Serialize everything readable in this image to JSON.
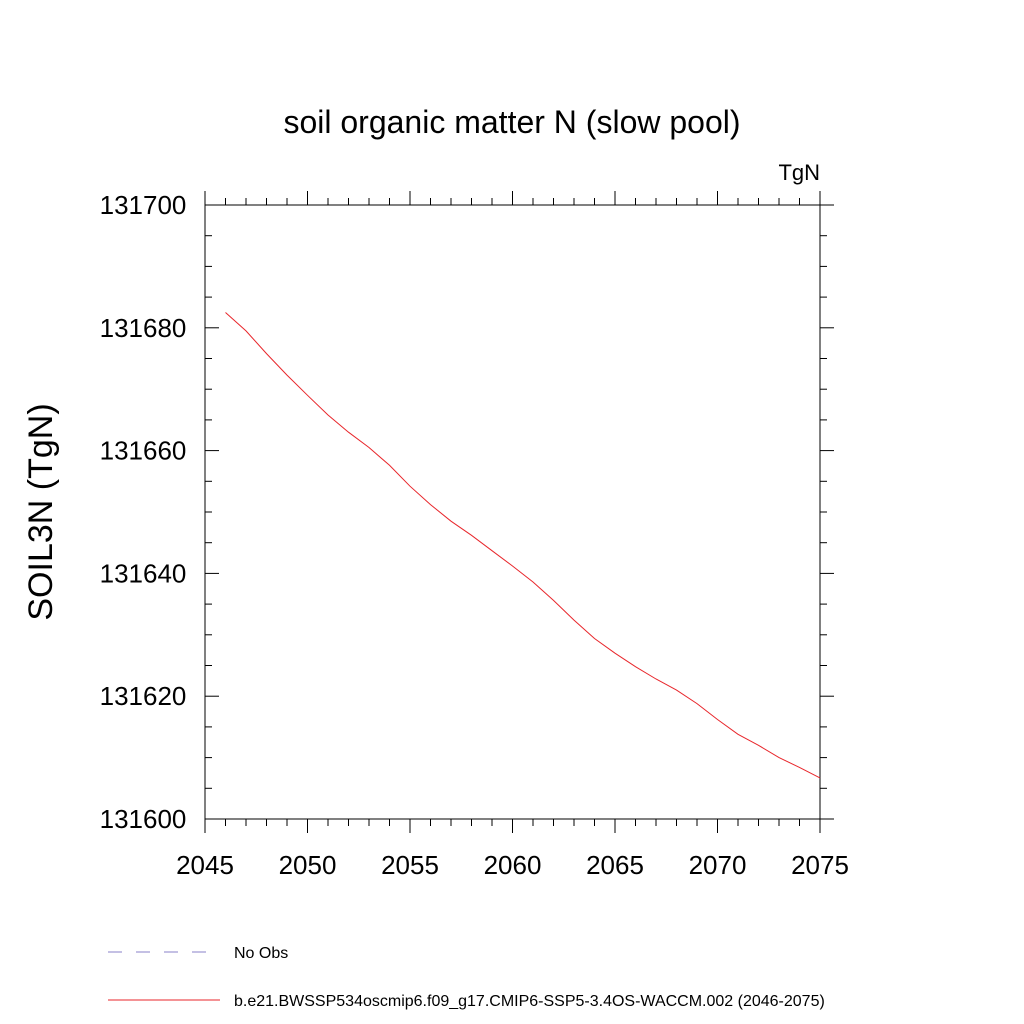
{
  "chart_data": {
    "type": "line",
    "title": "soil organic matter N (slow pool)",
    "units": "TgN",
    "ylabel": "SOIL3N  (TgN)",
    "xlabel": "",
    "xlim": [
      2045,
      2075
    ],
    "ylim": [
      131600,
      131700
    ],
    "x_ticks": [
      "2045",
      "2050",
      "2055",
      "2060",
      "2065",
      "2070",
      "2075"
    ],
    "y_ticks": [
      "131600",
      "131620",
      "131640",
      "131660",
      "131680",
      "131700"
    ],
    "x_tick_values": [
      2045,
      2050,
      2055,
      2060,
      2065,
      2070,
      2075
    ],
    "y_tick_values": [
      131600,
      131620,
      131640,
      131660,
      131680,
      131700
    ],
    "x_minor_step": 1,
    "y_minor_step": 5,
    "grid": false,
    "legend_position": "bottom",
    "series": [
      {
        "name": "No Obs",
        "color": "#8a82c8",
        "dash": "dashed",
        "x": [],
        "values": []
      },
      {
        "name": "b.e21.BWSSP534oscmip6.f09_g17.CMIP6-SSP5-3.4OS-WACCM.002 (2046-2075)",
        "color": "#e8262b",
        "dash": "solid",
        "x": [
          2046,
          2047,
          2048,
          2049,
          2050,
          2051,
          2052,
          2053,
          2054,
          2055,
          2056,
          2057,
          2058,
          2059,
          2060,
          2061,
          2062,
          2063,
          2064,
          2065,
          2066,
          2067,
          2068,
          2069,
          2070,
          2071,
          2072,
          2073,
          2074,
          2075
        ],
        "values": [
          131682.5,
          131679.5,
          131675.8,
          131672.3,
          131669.0,
          131665.8,
          131663.0,
          131660.5,
          131657.6,
          131654.2,
          131651.2,
          131648.5,
          131646.2,
          131643.7,
          131641.2,
          131638.6,
          131635.6,
          131632.4,
          131629.4,
          131627.0,
          131624.8,
          131622.8,
          131621.0,
          131618.8,
          131616.2,
          131613.8,
          131612.0,
          131610.0,
          131608.4,
          131606.7
        ]
      }
    ]
  }
}
